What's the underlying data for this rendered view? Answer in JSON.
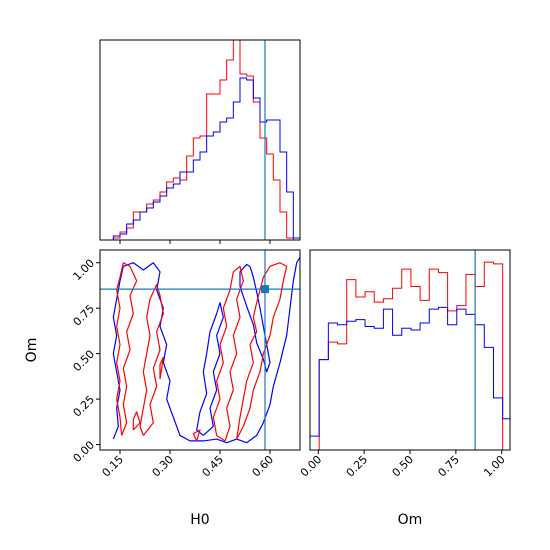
{
  "chart_data": {
    "type": "corner",
    "parameters": [
      "H0",
      "Om"
    ],
    "truth": {
      "H0": 0.585,
      "Om": 0.855
    },
    "colors": {
      "series_a": "#ff0000",
      "series_b": "#0000ff",
      "truth": "#1f77b4"
    },
    "panels": [
      {
        "id": "hist-H0",
        "type": "histogram",
        "xlim": [
          0.09,
          0.69
        ],
        "ylim": [
          0,
          1.0
        ],
        "xticks": [
          0.15,
          0.3,
          0.45,
          0.6
        ],
        "show_tick_labels": false,
        "bins": [
          0.09,
          0.11,
          0.13,
          0.15,
          0.17,
          0.19,
          0.21,
          0.23,
          0.25,
          0.27,
          0.29,
          0.31,
          0.33,
          0.35,
          0.37,
          0.39,
          0.41,
          0.43,
          0.45,
          0.47,
          0.49,
          0.51,
          0.53,
          0.55,
          0.57,
          0.59,
          0.61,
          0.63,
          0.65,
          0.67,
          0.69
        ],
        "series": [
          {
            "color": "#ff0000",
            "values": [
              0,
              0,
              0.01,
              0.04,
              0.06,
              0.14,
              0.14,
              0.18,
              0.2,
              0.24,
              0.29,
              0.31,
              0.3,
              0.42,
              0.51,
              0.52,
              0.73,
              0.73,
              0.8,
              0.9,
              1.0,
              0.83,
              0.82,
              0.69,
              0.51,
              0.43,
              0.3,
              0.14,
              0.01,
              0
            ]
          },
          {
            "color": "#0000ff",
            "values": [
              0,
              0,
              0.02,
              0.03,
              0.08,
              0.1,
              0.14,
              0.16,
              0.19,
              0.22,
              0.26,
              0.28,
              0.34,
              0.34,
              0.4,
              0.44,
              0.52,
              0.54,
              0.59,
              0.61,
              0.69,
              0.81,
              0.8,
              0.71,
              0.59,
              0.6,
              0.6,
              0.44,
              0.24,
              0.01
            ]
          }
        ]
      },
      {
        "id": "contour-H0-Om",
        "type": "contour",
        "xlim": [
          0.09,
          0.69
        ],
        "ylim": [
          -0.03,
          1.07
        ],
        "xticks": [
          0.15,
          0.3,
          0.45,
          0.6
        ],
        "yticks": [
          0.0,
          0.25,
          0.5,
          0.75,
          1.0
        ],
        "xtick_labels": [
          "0.15",
          "0.30",
          "0.45",
          "0.60"
        ],
        "ytick_labels": [
          "0.00",
          "0.25",
          "0.50",
          "0.75",
          "1.00"
        ],
        "xlabel": "H0",
        "ylabel": "Om",
        "contours": [
          {
            "color": "#0000ff",
            "points": [
              [
                0.13,
                0.03
              ],
              [
                0.145,
                0.1
              ],
              [
                0.14,
                0.2
              ],
              [
                0.15,
                0.3
              ],
              [
                0.14,
                0.4
              ],
              [
                0.13,
                0.5
              ],
              [
                0.14,
                0.6
              ],
              [
                0.13,
                0.7
              ],
              [
                0.14,
                0.8
              ],
              [
                0.15,
                0.9
              ],
              [
                0.16,
                0.98
              ],
              [
                0.19,
                1.0
              ],
              [
                0.22,
                0.96
              ],
              [
                0.25,
                1.0
              ],
              [
                0.27,
                0.95
              ],
              [
                0.26,
                0.85
              ],
              [
                0.28,
                0.75
              ],
              [
                0.27,
                0.65
              ],
              [
                0.29,
                0.55
              ],
              [
                0.28,
                0.45
              ],
              [
                0.3,
                0.35
              ],
              [
                0.29,
                0.25
              ],
              [
                0.31,
                0.15
              ],
              [
                0.33,
                0.05
              ],
              [
                0.36,
                0.02
              ],
              [
                0.4,
                0.02
              ],
              [
                0.44,
                0.03
              ],
              [
                0.47,
                0.01
              ],
              [
                0.5,
                0.03
              ],
              [
                0.53,
                0.01
              ],
              [
                0.56,
                0.05
              ],
              [
                0.58,
                0.12
              ],
              [
                0.6,
                0.22
              ],
              [
                0.61,
                0.32
              ],
              [
                0.63,
                0.45
              ],
              [
                0.65,
                0.6
              ],
              [
                0.66,
                0.75
              ],
              [
                0.67,
                0.9
              ],
              [
                0.68,
                1.0
              ],
              [
                0.69,
                1.03
              ]
            ]
          },
          {
            "color": "#0000ff",
            "points": [
              [
                0.54,
                0.98
              ],
              [
                0.55,
                0.92
              ],
              [
                0.56,
                0.84
              ],
              [
                0.57,
                0.75
              ],
              [
                0.58,
                0.65
              ],
              [
                0.59,
                0.55
              ],
              [
                0.6,
                0.45
              ],
              [
                0.59,
                0.4
              ],
              [
                0.58,
                0.47
              ],
              [
                0.56,
                0.56
              ],
              [
                0.55,
                0.66
              ],
              [
                0.53,
                0.76
              ],
              [
                0.51,
                0.87
              ],
              [
                0.51,
                0.95
              ],
              [
                0.53,
                0.99
              ],
              [
                0.54,
                0.98
              ]
            ]
          },
          {
            "color": "#0000ff",
            "points": [
              [
                0.4,
                0.05
              ],
              [
                0.43,
                0.1
              ],
              [
                0.42,
                0.2
              ],
              [
                0.44,
                0.3
              ],
              [
                0.43,
                0.4
              ],
              [
                0.45,
                0.5
              ],
              [
                0.44,
                0.6
              ],
              [
                0.46,
                0.7
              ],
              [
                0.45,
                0.78
              ],
              [
                0.44,
                0.72
              ],
              [
                0.42,
                0.62
              ],
              [
                0.41,
                0.5
              ],
              [
                0.4,
                0.4
              ],
              [
                0.41,
                0.28
              ],
              [
                0.39,
                0.18
              ],
              [
                0.38,
                0.08
              ],
              [
                0.4,
                0.05
              ]
            ]
          },
          {
            "color": "#ff0000",
            "points": [
              [
                0.155,
                0.05
              ],
              [
                0.17,
                0.12
              ],
              [
                0.16,
                0.22
              ],
              [
                0.17,
                0.32
              ],
              [
                0.16,
                0.42
              ],
              [
                0.18,
                0.52
              ],
              [
                0.17,
                0.62
              ],
              [
                0.19,
                0.72
              ],
              [
                0.18,
                0.82
              ],
              [
                0.2,
                0.9
              ],
              [
                0.18,
                0.98
              ],
              [
                0.16,
                1.0
              ],
              [
                0.15,
                0.92
              ],
              [
                0.14,
                0.85
              ],
              [
                0.15,
                0.75
              ],
              [
                0.14,
                0.65
              ],
              [
                0.15,
                0.55
              ],
              [
                0.14,
                0.45
              ],
              [
                0.15,
                0.35
              ],
              [
                0.14,
                0.25
              ],
              [
                0.15,
                0.15
              ],
              [
                0.155,
                0.05
              ]
            ]
          },
          {
            "color": "#ff0000",
            "points": [
              [
                0.22,
                0.05
              ],
              [
                0.25,
                0.12
              ],
              [
                0.24,
                0.22
              ],
              [
                0.26,
                0.32
              ],
              [
                0.25,
                0.42
              ],
              [
                0.27,
                0.52
              ],
              [
                0.26,
                0.62
              ],
              [
                0.28,
                0.72
              ],
              [
                0.27,
                0.82
              ],
              [
                0.26,
                0.88
              ],
              [
                0.24,
                0.8
              ],
              [
                0.23,
                0.7
              ],
              [
                0.24,
                0.6
              ],
              [
                0.23,
                0.5
              ],
              [
                0.22,
                0.4
              ],
              [
                0.23,
                0.3
              ],
              [
                0.22,
                0.2
              ],
              [
                0.21,
                0.1
              ],
              [
                0.22,
                0.05
              ]
            ]
          },
          {
            "color": "#ff0000",
            "points": [
              [
                0.465,
                0.02
              ],
              [
                0.48,
                0.1
              ],
              [
                0.47,
                0.2
              ],
              [
                0.49,
                0.3
              ],
              [
                0.48,
                0.4
              ],
              [
                0.5,
                0.5
              ],
              [
                0.49,
                0.6
              ],
              [
                0.51,
                0.7
              ],
              [
                0.5,
                0.8
              ],
              [
                0.52,
                0.9
              ],
              [
                0.51,
                0.98
              ],
              [
                0.49,
                0.95
              ],
              [
                0.48,
                0.85
              ],
              [
                0.46,
                0.75
              ],
              [
                0.47,
                0.65
              ],
              [
                0.45,
                0.55
              ],
              [
                0.46,
                0.45
              ],
              [
                0.44,
                0.35
              ],
              [
                0.45,
                0.25
              ],
              [
                0.43,
                0.15
              ],
              [
                0.44,
                0.05
              ],
              [
                0.465,
                0.02
              ]
            ]
          },
          {
            "color": "#ff0000",
            "points": [
              [
                0.5,
                0.03
              ],
              [
                0.52,
                0.1
              ],
              [
                0.54,
                0.2
              ],
              [
                0.55,
                0.3
              ],
              [
                0.57,
                0.4
              ],
              [
                0.58,
                0.5
              ],
              [
                0.6,
                0.6
              ],
              [
                0.61,
                0.7
              ],
              [
                0.63,
                0.8
              ],
              [
                0.64,
                0.9
              ],
              [
                0.65,
                0.98
              ],
              [
                0.63,
                1.0
              ],
              [
                0.6,
                0.98
              ],
              [
                0.58,
                0.92
              ],
              [
                0.57,
                0.85
              ],
              [
                0.56,
                0.78
              ],
              [
                0.55,
                0.7
              ],
              [
                0.56,
                0.62
              ],
              [
                0.54,
                0.55
              ],
              [
                0.55,
                0.45
              ],
              [
                0.53,
                0.35
              ],
              [
                0.52,
                0.25
              ],
              [
                0.51,
                0.15
              ],
              [
                0.5,
                0.03
              ]
            ]
          },
          {
            "color": "#ff0000",
            "points": [
              [
                0.19,
                0.08
              ],
              [
                0.21,
                0.12
              ],
              [
                0.2,
                0.18
              ],
              [
                0.19,
                0.14
              ],
              [
                0.19,
                0.08
              ]
            ]
          },
          {
            "color": "#ff0000",
            "points": [
              [
                0.38,
                0.02
              ],
              [
                0.39,
                0.08
              ],
              [
                0.37,
                0.06
              ],
              [
                0.38,
                0.02
              ]
            ]
          },
          {
            "color": "#ff0000",
            "points": [
              [
                0.27,
                0.36
              ],
              [
                0.28,
                0.48
              ],
              [
                0.27,
                0.44
              ],
              [
                0.27,
                0.36
              ]
            ]
          }
        ]
      },
      {
        "id": "hist-Om",
        "type": "histogram",
        "xlim": [
          -0.045,
          1.045
        ],
        "ylim": [
          0,
          1.15
        ],
        "xticks": [
          0.0,
          0.25,
          0.5,
          0.75,
          1.0
        ],
        "xtick_labels": [
          "0.00",
          "0.25",
          "0.50",
          "0.75",
          "1.00"
        ],
        "xlabel": "Om",
        "bins": [
          -0.045,
          0.005,
          0.055,
          0.105,
          0.155,
          0.205,
          0.255,
          0.305,
          0.355,
          0.405,
          0.455,
          0.505,
          0.555,
          0.605,
          0.655,
          0.705,
          0.755,
          0.805,
          0.855,
          0.905,
          0.955,
          1.005,
          1.045
        ],
        "series": [
          {
            "color": "#ff0000",
            "values": [
              0,
              0.52,
              0.62,
              0.61,
              0.98,
              0.88,
              0.91,
              0.85,
              0.87,
              0.93,
              1.04,
              0.94,
              0.86,
              1.04,
              1.02,
              0.8,
              0.83,
              1.01,
              0.94,
              1.08,
              1.07,
              0
            ]
          },
          {
            "color": "#0000ff",
            "values": [
              0.08,
              0.52,
              0.73,
              0.72,
              0.74,
              0.75,
              0.71,
              0.7,
              0.81,
              0.66,
              0.7,
              0.69,
              0.73,
              0.81,
              0.82,
              0.72,
              0.81,
              0.78,
              0.72,
              0.59,
              0.3,
              0.18
            ]
          }
        ]
      }
    ]
  }
}
